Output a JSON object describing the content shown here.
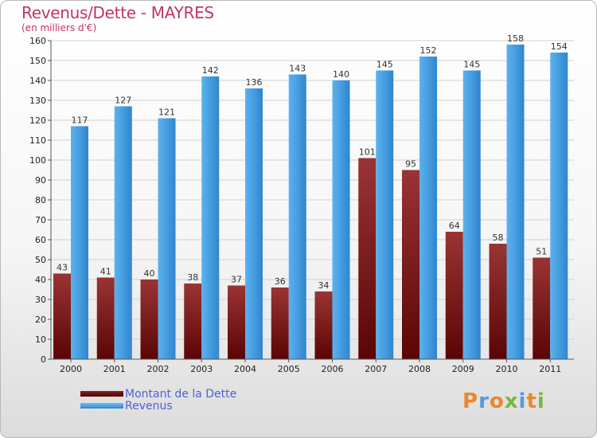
{
  "title": "Revenus/Dette - MAYRES",
  "subtitle": "(en milliers d'€)",
  "colors": {
    "dette": "#7a1717",
    "revenus": "#3d98de",
    "title": "#c0346a",
    "legend_text": "#4a62d8"
  },
  "legend": [
    {
      "label": "Montant de la Dette",
      "color": "#6b0f0f"
    },
    {
      "label": "Revenus",
      "color": "#3d98de"
    }
  ],
  "logo": {
    "text": "Proxiti",
    "icon": "proxiti-logo"
  },
  "chart_data": {
    "type": "bar",
    "title": "Revenus/Dette - MAYRES",
    "subtitle": "(en milliers d'€)",
    "categories": [
      "2000",
      "2001",
      "2002",
      "2003",
      "2004",
      "2005",
      "2006",
      "2007",
      "2008",
      "2009",
      "2010",
      "2011"
    ],
    "series": [
      {
        "name": "Montant de la Dette",
        "values": [
          43,
          41,
          40,
          38,
          37,
          36,
          34,
          101,
          95,
          64,
          58,
          51
        ]
      },
      {
        "name": "Revenus",
        "values": [
          117,
          127,
          121,
          142,
          136,
          143,
          140,
          145,
          152,
          145,
          158,
          154
        ]
      }
    ],
    "ylim": [
      0,
      160
    ],
    "yticks": [
      0,
      10,
      20,
      30,
      40,
      50,
      60,
      70,
      80,
      90,
      100,
      110,
      120,
      130,
      140,
      150,
      160
    ],
    "grid": true,
    "legend_position": "bottom-left"
  }
}
